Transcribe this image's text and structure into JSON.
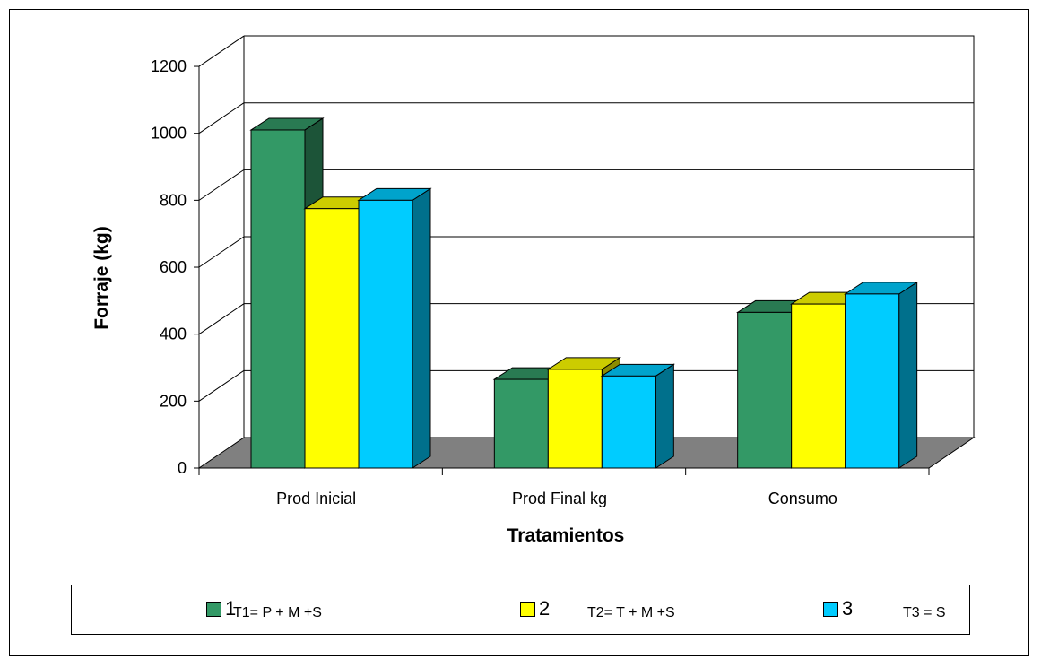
{
  "chart_data": {
    "type": "bar",
    "style": "3d-clustered",
    "categories": [
      "Prod Inicial",
      "Prod Final  kg",
      "Consumo"
    ],
    "series": [
      {
        "name": "1",
        "values": [
          1010,
          265,
          465
        ],
        "color": "#339966"
      },
      {
        "name": "2",
        "values": [
          775,
          295,
          490
        ],
        "color": "#ffff00"
      },
      {
        "name": "3",
        "values": [
          800,
          275,
          520
        ],
        "color": "#00ccff"
      }
    ],
    "title": "",
    "xlabel": "Tratamientos",
    "ylabel": "Forraje (kg)",
    "ylim": [
      0,
      1200
    ],
    "yticks": [
      0,
      200,
      400,
      600,
      800,
      1000,
      1200
    ],
    "grid": true,
    "floor_color": "#808080",
    "legend_position": "bottom",
    "legend_notes": [
      "T1= P + M +S",
      "T2= T + M +S",
      "T3 = S"
    ]
  }
}
